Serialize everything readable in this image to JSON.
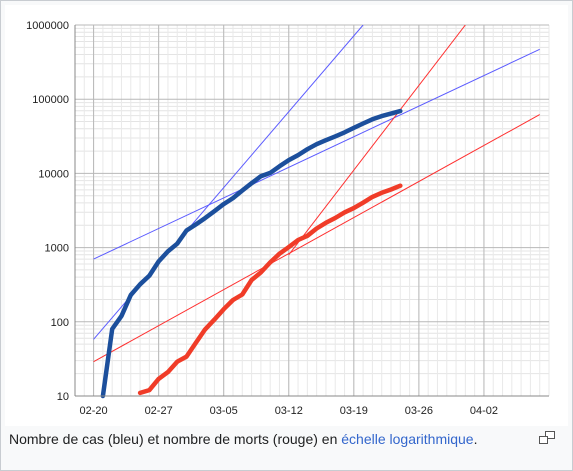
{
  "chart_data": {
    "type": "line",
    "title": "",
    "xlabel": "",
    "ylabel": "",
    "yscale": "log",
    "ylim": [
      10,
      1000000
    ],
    "xlim": [
      "02-18",
      "04-09"
    ],
    "x_tick_labels": [
      "02-20",
      "02-27",
      "03-05",
      "03-12",
      "03-19",
      "03-26",
      "04-02"
    ],
    "y_tick_labels": [
      "10",
      "100",
      "1000",
      "10000",
      "100000",
      "1000000"
    ],
    "grid": true,
    "series": [
      {
        "color": "#1c4f9c",
        "points": [
          [
            "02-21",
            10
          ],
          [
            "02-22",
            80
          ],
          [
            "02-23",
            120
          ],
          [
            "02-24",
            230
          ],
          [
            "02-25",
            320
          ],
          [
            "02-26",
            420
          ],
          [
            "02-27",
            650
          ],
          [
            "02-28",
            890
          ],
          [
            "02-29",
            1130
          ],
          [
            "03-01",
            1700
          ],
          [
            "03-02",
            2050
          ],
          [
            "03-03",
            2500
          ],
          [
            "03-04",
            3090
          ],
          [
            "03-05",
            3860
          ],
          [
            "03-06",
            4640
          ],
          [
            "03-07",
            5880
          ],
          [
            "03-08",
            7380
          ],
          [
            "03-09",
            9170
          ],
          [
            "03-10",
            10150
          ],
          [
            "03-11",
            12460
          ],
          [
            "03-12",
            15110
          ],
          [
            "03-13",
            17660
          ],
          [
            "03-14",
            21160
          ],
          [
            "03-15",
            24740
          ],
          [
            "03-16",
            27980
          ],
          [
            "03-17",
            31510
          ],
          [
            "03-18",
            35710
          ],
          [
            "03-19",
            41030
          ],
          [
            "03-20",
            47020
          ],
          [
            "03-21",
            53580
          ],
          [
            "03-22",
            59140
          ],
          [
            "03-23",
            63930
          ],
          [
            "03-24",
            69180
          ]
        ]
      },
      {
        "color": "#f03c28",
        "points": [
          [
            "02-25",
            11
          ],
          [
            "02-26",
            12
          ],
          [
            "02-27",
            17
          ],
          [
            "02-28",
            21
          ],
          [
            "02-29",
            29
          ],
          [
            "03-01",
            34
          ],
          [
            "03-02",
            52
          ],
          [
            "03-03",
            79
          ],
          [
            "03-04",
            107
          ],
          [
            "03-05",
            148
          ],
          [
            "03-06",
            197
          ],
          [
            "03-07",
            233
          ],
          [
            "03-08",
            366
          ],
          [
            "03-09",
            463
          ],
          [
            "03-10",
            631
          ],
          [
            "03-11",
            827
          ],
          [
            "03-12",
            1016
          ],
          [
            "03-13",
            1266
          ],
          [
            "03-14",
            1441
          ],
          [
            "03-15",
            1809
          ],
          [
            "03-16",
            2158
          ],
          [
            "03-17",
            2503
          ],
          [
            "03-18",
            2978
          ],
          [
            "03-19",
            3405
          ],
          [
            "03-20",
            4032
          ],
          [
            "03-21",
            4825
          ],
          [
            "03-22",
            5476
          ],
          [
            "03-23",
            6077
          ],
          [
            "03-24",
            6820
          ]
        ]
      }
    ],
    "trend_lines": [
      {
        "color": "#5b5bff",
        "points": [
          [
            "02-20",
            700
          ],
          [
            "04-08",
            470000
          ]
        ]
      },
      {
        "color": "#5b5bff",
        "points": [
          [
            "02-20",
            58
          ],
          [
            "03-20",
            1000000
          ]
        ]
      },
      {
        "color": "#ff3030",
        "points": [
          [
            "02-20",
            29
          ],
          [
            "04-08",
            62000
          ]
        ]
      },
      {
        "color": "#ff3030",
        "points": [
          [
            "03-12",
            800
          ],
          [
            "03-31",
            1000000
          ]
        ]
      }
    ]
  },
  "caption": {
    "text_before": "Nombre de cas (bleu) et nombre de morts (rouge) en ",
    "link_text": "échelle logarithmique",
    "text_after": "."
  },
  "icons": {
    "magnify": "magnify-clip-icon"
  }
}
